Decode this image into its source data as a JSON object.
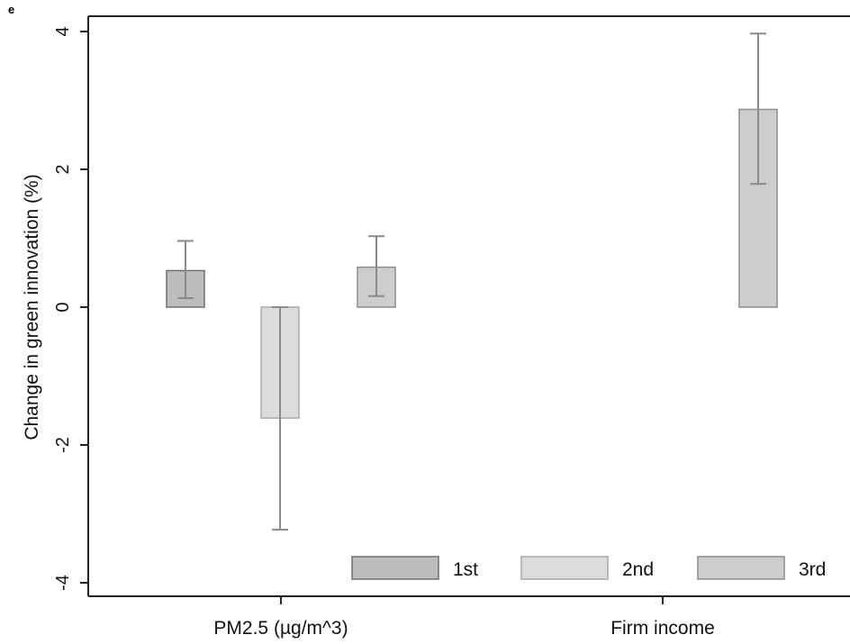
{
  "panel_label": "e",
  "chart_data": {
    "type": "bar",
    "ylabel": "Change in green innovation (%)",
    "xlabel": "",
    "ylim": [
      -4.2,
      4.2
    ],
    "yticks": [
      4,
      2,
      0,
      -2,
      -4
    ],
    "ytick_labels": [
      "4",
      "2",
      "0",
      "-2",
      "-4"
    ],
    "categories": [
      "PM2.5 (µg/m^3)",
      "Firm income"
    ],
    "series": [
      {
        "name": "1st",
        "color": "#bdbdbd",
        "stroke": "#6e6e6e",
        "values": [
          0.53,
          null
        ],
        "ci_low": [
          0.13,
          null
        ],
        "ci_high": [
          0.96,
          null
        ]
      },
      {
        "name": "2nd",
        "color": "#dcdcdc",
        "stroke": "#a9a9a9",
        "values": [
          -1.61,
          null
        ],
        "ci_low": [
          -3.23,
          null
        ],
        "ci_high": [
          0.0,
          null
        ]
      },
      {
        "name": "3rd",
        "color": "#cdcdcd",
        "stroke": "#8c8c8c",
        "values": [
          0.58,
          2.87
        ],
        "ci_low": [
          0.16,
          1.79
        ],
        "ci_high": [
          1.03,
          3.97
        ]
      }
    ],
    "legend_position": "bottom-right",
    "grid": false
  }
}
